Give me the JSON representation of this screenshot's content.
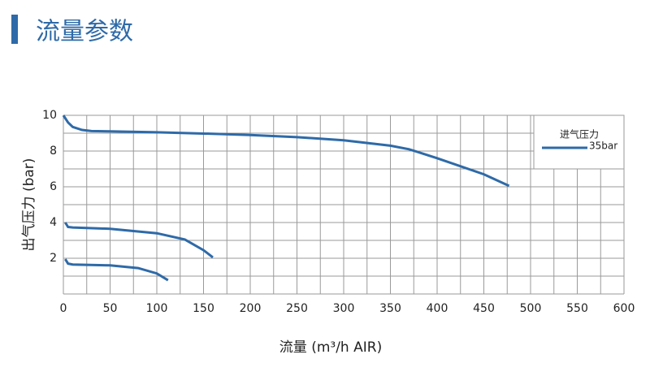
{
  "header": {
    "title": "流量参数"
  },
  "chart_data": {
    "type": "line",
    "xlabel": "流量 (m³/h AIR)",
    "ylabel": "出气压力 (bar)",
    "xlim": [
      0,
      600
    ],
    "ylim": [
      0,
      10
    ],
    "xticks": [
      0,
      50,
      100,
      150,
      200,
      250,
      300,
      350,
      400,
      450,
      500,
      550,
      600
    ],
    "yticks": [
      2,
      4,
      6,
      8,
      10
    ],
    "xgrid": [
      0,
      25,
      50,
      75,
      100,
      125,
      150,
      175,
      200,
      225,
      250,
      275,
      300,
      325,
      350,
      375,
      400,
      425,
      450,
      475,
      500,
      525,
      550,
      575,
      600
    ],
    "ygrid": [
      0,
      1,
      2,
      3,
      4,
      5,
      6,
      7,
      8,
      9,
      10
    ],
    "grid": true,
    "legend_title": "进气压力",
    "legend": "upper right",
    "series": [
      {
        "name": "35bar",
        "color": "#2e6aa8",
        "x": [
          0,
          5,
          10,
          20,
          30,
          50,
          100,
          150,
          200,
          250,
          300,
          350,
          370,
          400,
          450,
          477
        ],
        "values": [
          10,
          9.6,
          9.35,
          9.18,
          9.12,
          9.1,
          9.05,
          8.98,
          8.9,
          8.78,
          8.6,
          8.3,
          8.1,
          7.6,
          6.7,
          6.05
        ]
      },
      {
        "color": "#2e6aa8",
        "x": [
          2,
          5,
          10,
          50,
          100,
          130,
          150,
          160
        ],
        "values": [
          4.0,
          3.75,
          3.72,
          3.65,
          3.4,
          3.05,
          2.45,
          2.05
        ]
      },
      {
        "color": "#2e6aa8",
        "x": [
          2,
          5,
          10,
          50,
          80,
          100,
          112
        ],
        "values": [
          1.95,
          1.7,
          1.65,
          1.6,
          1.45,
          1.15,
          0.77
        ]
      }
    ]
  }
}
